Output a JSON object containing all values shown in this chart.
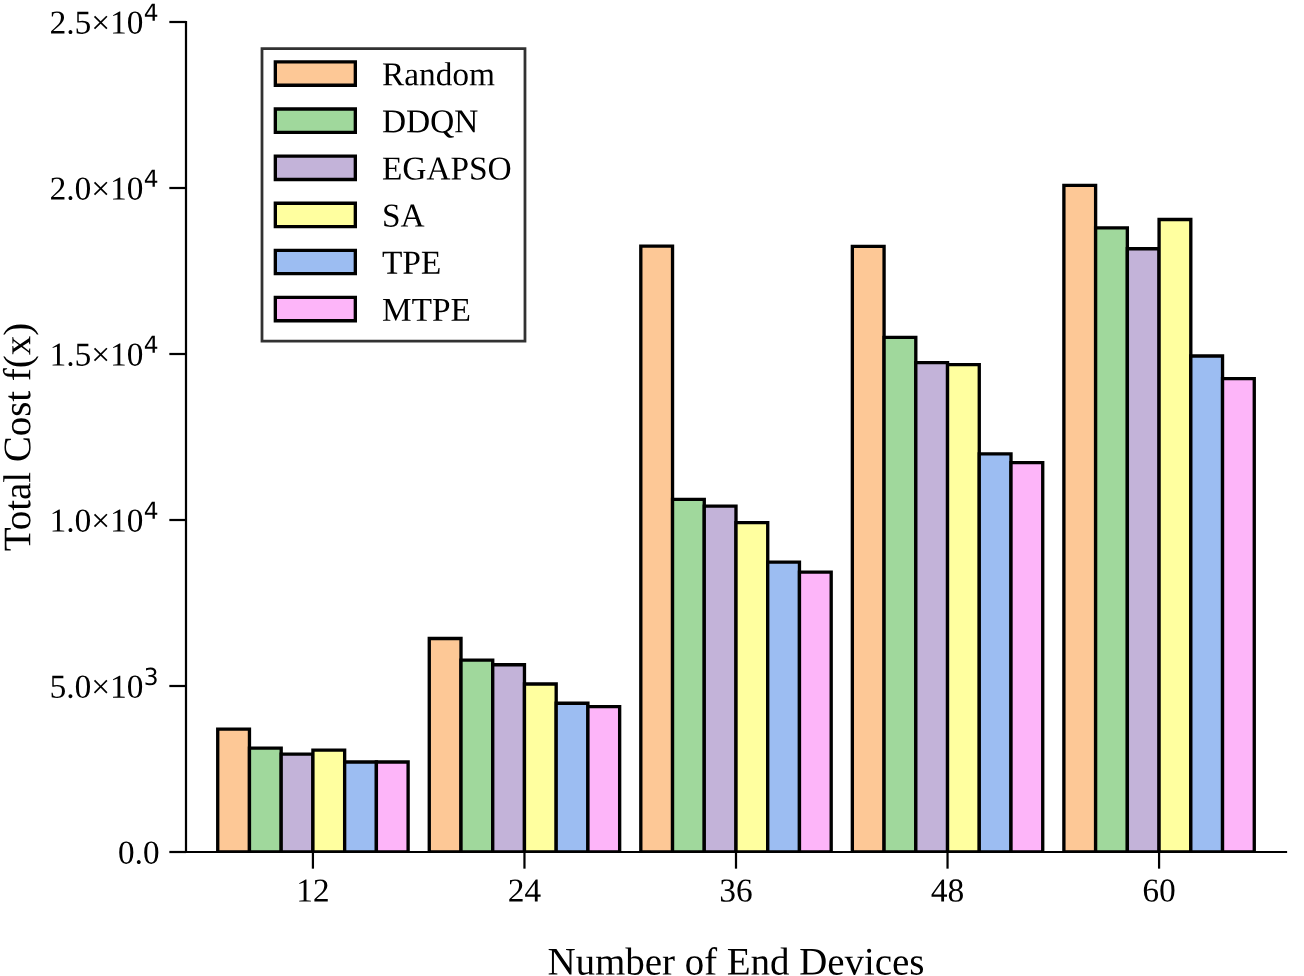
{
  "chart_data": {
    "type": "bar",
    "xlabel": "Number of End Devices",
    "ylabel": "Total Cost f(x)",
    "categories": [
      "12",
      "24",
      "36",
      "48",
      "60"
    ],
    "series": [
      {
        "name": "Random",
        "color": "#fdc896",
        "values": [
          3700,
          6430,
          18250,
          18240,
          20080
        ]
      },
      {
        "name": "DDQN",
        "color": "#a0d89c",
        "values": [
          3130,
          5780,
          10620,
          15500,
          18800
        ]
      },
      {
        "name": "EGAPSO",
        "color": "#c3b3d9",
        "values": [
          2950,
          5640,
          10420,
          14740,
          18170
        ]
      },
      {
        "name": "SA",
        "color": "#ffff9f",
        "values": [
          3070,
          5060,
          9920,
          14680,
          19050
        ]
      },
      {
        "name": "TPE",
        "color": "#9cbdf2",
        "values": [
          2710,
          4480,
          8730,
          11990,
          14940
        ]
      },
      {
        "name": "MTPE",
        "color": "#fdb5f9",
        "values": [
          2710,
          4380,
          8430,
          11730,
          14260
        ]
      }
    ],
    "ylim": [
      0,
      25000
    ],
    "yticks": [
      {
        "value": 0,
        "label": "0.0"
      },
      {
        "value": 5000,
        "label": "5.0×10$^{3}$"
      },
      {
        "value": 10000,
        "label": "1.0×10$^{4}$"
      },
      {
        "value": 15000,
        "label": "1.5×10$^{4}$"
      },
      {
        "value": 20000,
        "label": "2.0×10$^{4}$"
      },
      {
        "value": 25000,
        "label": "2.5×10$^{4}$"
      }
    ],
    "legend": "top left",
    "grid": false
  }
}
